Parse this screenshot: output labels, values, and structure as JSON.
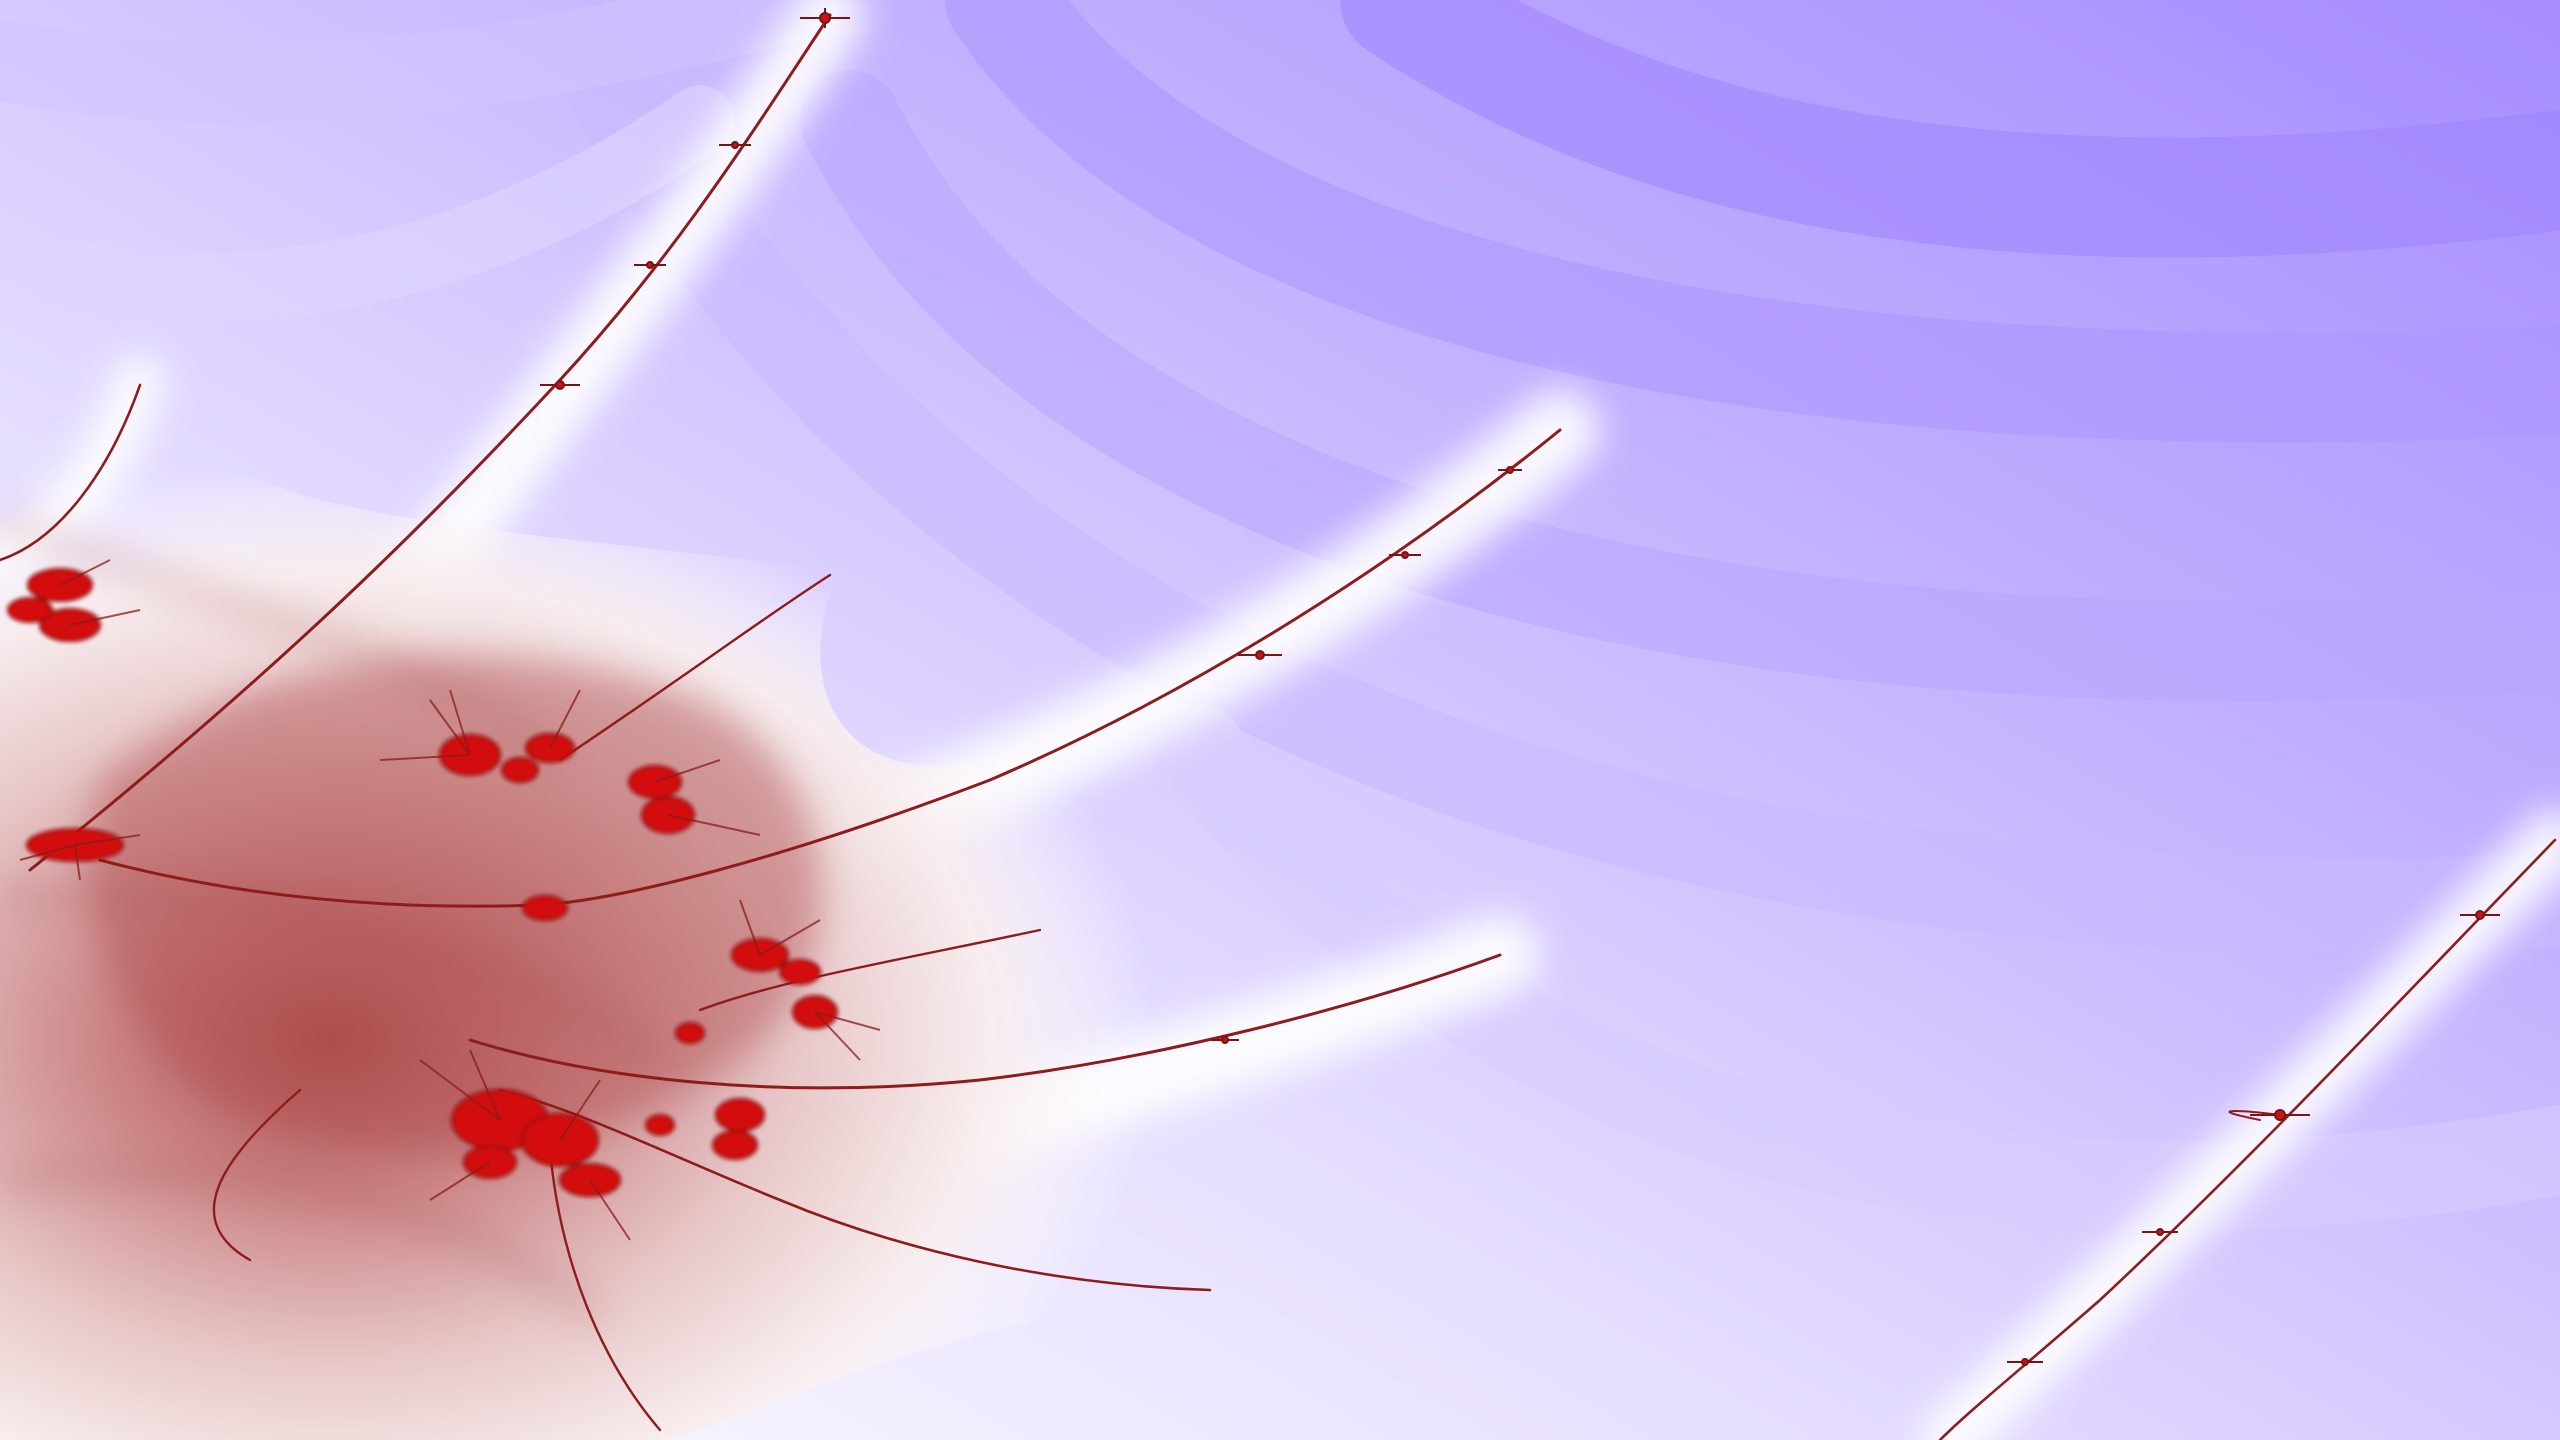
{
  "image": {
    "kind": "fractal render (Mandelbrot/Julia-style escape-time zoom)",
    "palette": {
      "background_deep": "#a78dff",
      "background_mid": "#c8b9ff",
      "background_light": "#e9e3ff",
      "halo": "#ffffff",
      "warm_light": "#f3e2e2",
      "warm_mid": "#d9a0a0",
      "warm_deep": "#b65a5a",
      "filament": "#8e1c1c",
      "core": "#d40f0f"
    },
    "text": []
  }
}
